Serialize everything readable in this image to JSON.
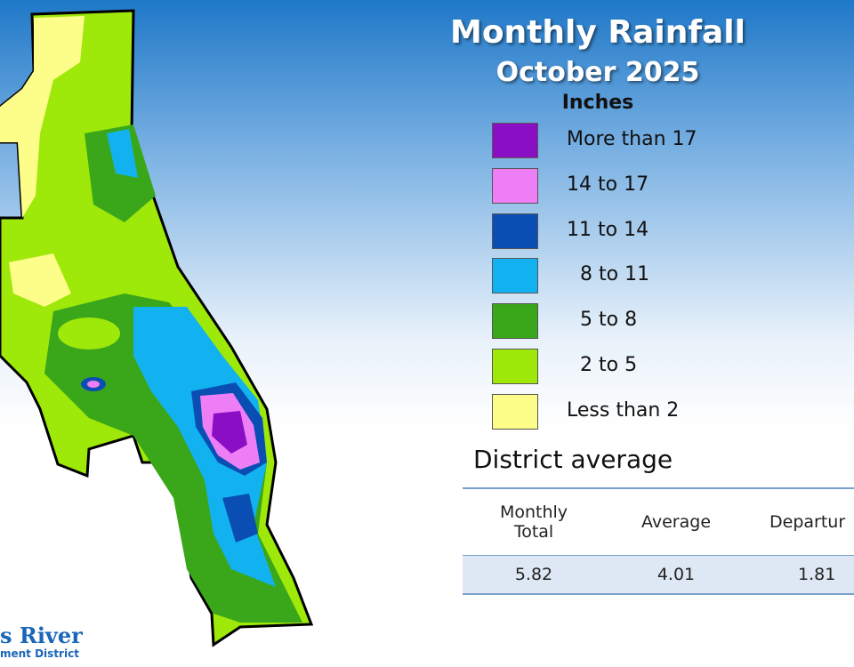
{
  "header": {
    "title": "Monthly Rainfall",
    "subtitle": "October 2025"
  },
  "legend": {
    "title": "Inches",
    "items": [
      {
        "label": "More than 17",
        "color": "#8a0fc4"
      },
      {
        "label": "14 to 17",
        "color": "#ee7ef5"
      },
      {
        "label": "11 to 14",
        "color": "#0a4eb4"
      },
      {
        "label": "8 to 11",
        "color": "#12b2f0"
      },
      {
        "label": "5 to 8",
        "color": "#3aa71a"
      },
      {
        "label": "2 to 5",
        "color": "#9ee80a"
      },
      {
        "label": "Less than 2",
        "color": "#fdfd8a"
      }
    ]
  },
  "summary": {
    "title": "District average",
    "table": {
      "headers": [
        "Monthly Total",
        "Average",
        "Departur"
      ],
      "rows": [
        [
          "5.82",
          "4.01",
          "1.81"
        ]
      ]
    }
  },
  "logo": {
    "line1": "s River",
    "line2": "ment District"
  }
}
